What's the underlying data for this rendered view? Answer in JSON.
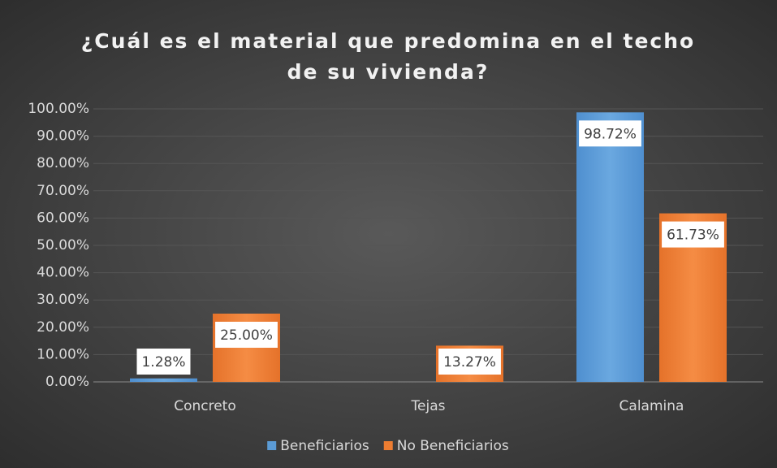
{
  "chart_data": {
    "type": "bar",
    "title": "¿Cuál es el material que predomina en el techo de su vivienda?",
    "categories": [
      "Concreto",
      "Tejas",
      "Calamina"
    ],
    "series": [
      {
        "name": "Beneficiarios",
        "color": "#5b9bd5",
        "values": [
          1.28,
          0,
          98.72
        ],
        "value_labels": [
          "1.28%",
          null,
          "98.72%"
        ]
      },
      {
        "name": "No Beneficiarios",
        "color": "#ed7d31",
        "values": [
          25.0,
          13.27,
          61.73
        ],
        "value_labels": [
          "25.00%",
          "13.27%",
          "61.73%"
        ]
      }
    ],
    "ylim": [
      0,
      100
    ],
    "yticks": [
      {
        "value": 0,
        "label": "0.00%"
      },
      {
        "value": 10,
        "label": "10.00%"
      },
      {
        "value": 20,
        "label": "20.00%"
      },
      {
        "value": 30,
        "label": "30.00%"
      },
      {
        "value": 40,
        "label": "40.00%"
      },
      {
        "value": 50,
        "label": "50.00%"
      },
      {
        "value": 60,
        "label": "60.00%"
      },
      {
        "value": 70,
        "label": "70.00%"
      },
      {
        "value": 80,
        "label": "80.00%"
      },
      {
        "value": 90,
        "label": "90.00%"
      },
      {
        "value": 100,
        "label": "100.00%"
      }
    ],
    "grid": true,
    "legend": "bottom"
  }
}
